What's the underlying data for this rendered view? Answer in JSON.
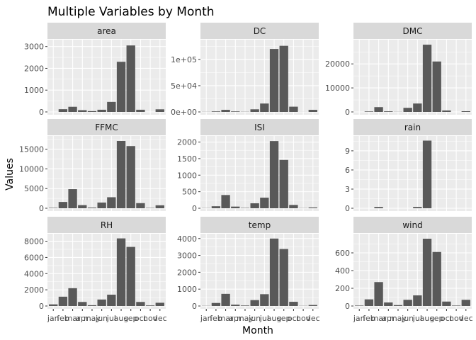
{
  "title": "Multiple Variables by Month",
  "axes": {
    "xlabel": "Month",
    "ylabel": "Values"
  },
  "colors": {
    "panel_bg": "#ebebeb",
    "grid_major": "#ffffff",
    "strip_bg": "#d9d9d9",
    "bar": "#595959",
    "text": "#1a1a1a",
    "tick_text": "#4d4d4d"
  },
  "chart_data": {
    "type": "bar",
    "layout": "facet_wrap 3x3, free y scales, shared x",
    "grid": true,
    "categories": [
      "jan",
      "feb",
      "mar",
      "apr",
      "may",
      "jun",
      "jul",
      "aug",
      "sep",
      "oct",
      "nov",
      "dec"
    ],
    "series": [
      {
        "name": "area",
        "values": [
          0,
          125,
          236,
          80,
          38,
          100,
          460,
          2300,
          3050,
          100,
          0,
          120
        ],
        "ylim": [
          0,
          3250
        ],
        "ticks": [
          0,
          1000,
          2000,
          3000
        ],
        "tick_labels": [
          "0",
          "1000",
          "2000",
          "3000"
        ]
      },
      {
        "name": "DC",
        "values": [
          200,
          1000,
          4000,
          1000,
          300,
          5000,
          16000,
          120000,
          126000,
          10000,
          100,
          4000
        ],
        "ylim": [
          0,
          135000
        ],
        "ticks": [
          0,
          50000,
          100000
        ],
        "tick_labels": [
          "0e+00",
          "5e+04",
          "1e+05"
        ]
      },
      {
        "name": "DMC",
        "values": [
          0,
          200,
          2000,
          250,
          50,
          1700,
          3500,
          28000,
          21000,
          600,
          0,
          300
        ],
        "ylim": [
          0,
          29500
        ],
        "ticks": [
          0,
          10000,
          20000
        ],
        "tick_labels": [
          "0",
          "10000",
          "20000"
        ]
      },
      {
        "name": "FFMC",
        "values": [
          100,
          1600,
          4850,
          800,
          170,
          1450,
          2800,
          17100,
          15800,
          1300,
          80,
          750
        ],
        "ylim": [
          0,
          18000
        ],
        "ticks": [
          0,
          5000,
          10000,
          15000
        ],
        "tick_labels": [
          "0",
          "5000",
          "10000",
          "15000"
        ]
      },
      {
        "name": "ISI",
        "values": [
          5,
          60,
          400,
          50,
          10,
          150,
          320,
          2030,
          1460,
          100,
          5,
          25
        ],
        "ylim": [
          0,
          2140
        ],
        "ticks": [
          0,
          500,
          1000,
          1500,
          2000
        ],
        "tick_labels": [
          "0",
          "500",
          "1000",
          "1500",
          "2000"
        ]
      },
      {
        "name": "rain",
        "values": [
          0,
          0,
          0.2,
          0,
          0,
          0,
          0.2,
          10.6,
          0,
          0,
          0,
          0
        ],
        "ylim": [
          0,
          11.1
        ],
        "ticks": [
          0,
          3,
          6,
          9
        ],
        "tick_labels": [
          "0",
          "3",
          "6",
          "9"
        ]
      },
      {
        "name": "RH",
        "values": [
          200,
          1150,
          2200,
          500,
          100,
          800,
          1400,
          8350,
          7300,
          500,
          70,
          400
        ],
        "ylim": [
          0,
          8750
        ],
        "ticks": [
          0,
          2000,
          4000,
          6000,
          8000
        ],
        "tick_labels": [
          "0",
          "2000",
          "4000",
          "6000",
          "8000"
        ]
      },
      {
        "name": "temp",
        "values": [
          10,
          180,
          720,
          80,
          30,
          350,
          700,
          4000,
          3380,
          250,
          10,
          60
        ],
        "ylim": [
          0,
          4200
        ],
        "ticks": [
          0,
          1000,
          2000,
          3000,
          4000
        ],
        "tick_labels": [
          "0",
          "1000",
          "2000",
          "3000",
          "4000"
        ]
      },
      {
        "name": "wind",
        "values": [
          5,
          75,
          270,
          40,
          10,
          70,
          120,
          760,
          610,
          50,
          5,
          70
        ],
        "ylim": [
          0,
          800
        ],
        "ticks": [
          0,
          200,
          400,
          600
        ],
        "tick_labels": [
          "0",
          "200",
          "400",
          "600"
        ]
      }
    ]
  }
}
